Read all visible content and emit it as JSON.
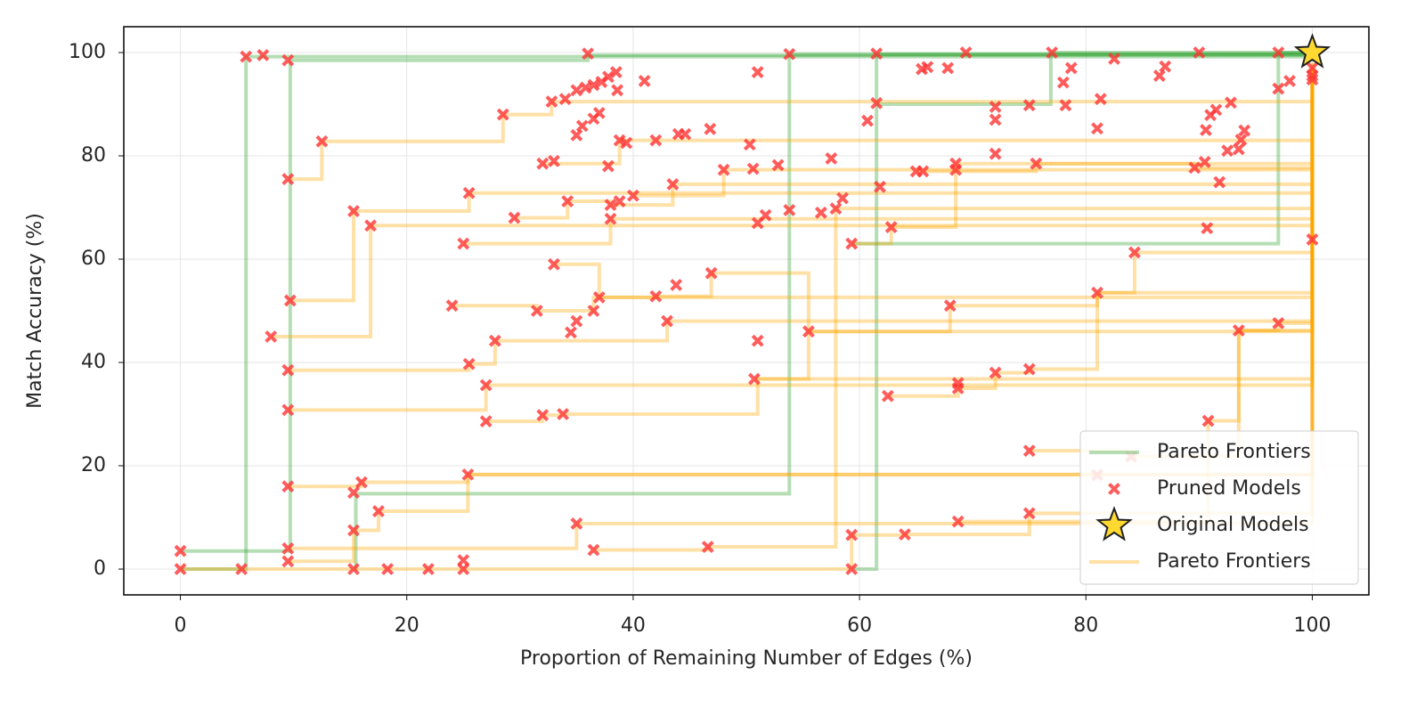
{
  "chart_data": {
    "type": "scatter",
    "xlabel": "Proportion of Remaining Number of Edges (%)",
    "ylabel": "Match Accuracy (%)",
    "xlim": [
      -5,
      105
    ],
    "ylim": [
      -5,
      105
    ],
    "xticks": [
      0,
      20,
      40,
      60,
      80,
      100
    ],
    "yticks": [
      0,
      20,
      40,
      60,
      80,
      100
    ],
    "grid": true,
    "legend": "lower right",
    "series": [
      {
        "name": "Pareto Frontiers",
        "color": "#2ca02c",
        "kind": "step",
        "lines": [
          {
            "x": [
              0,
              5.8,
              100
            ],
            "y": [
              0,
              99.2,
              100
            ]
          },
          {
            "x": [
              0,
              9.7,
              36,
              100
            ],
            "y": [
              3.5,
              98.5,
              99.5,
              100
            ]
          },
          {
            "x": [
              15.3,
              15.5,
              53.8,
              100
            ],
            "y": [
              0,
              14.6,
              99.7,
              100
            ]
          },
          {
            "x": [
              59.5,
              61.5,
              100
            ],
            "y": [
              0,
              99.7,
              100
            ]
          },
          {
            "x": [
              61.5,
              76.9,
              100
            ],
            "y": [
              90,
              100,
              100
            ]
          },
          {
            "x": [
              59.3,
              97,
              100
            ],
            "y": [
              63,
              100,
              100
            ]
          }
        ]
      },
      {
        "name": "Pruned Models",
        "color": "#ff3333",
        "marker": "x",
        "x": [
          0,
          0,
          5.4,
          5.8,
          7.3,
          9.5,
          9.5,
          9.7,
          9.5,
          9.5,
          9.5,
          9.5,
          9.5,
          8,
          12.5,
          15.3,
          16.8,
          15.3,
          16,
          15.3,
          17.5,
          15.3,
          18.3,
          21.9,
          25,
          25,
          25.4,
          24,
          25,
          25.5,
          25.5,
          27,
          27,
          27.8,
          28.5,
          29.5,
          31.5,
          32,
          32,
          33,
          32.8,
          33,
          33.8,
          34.2,
          34.5,
          34,
          35,
          35.8,
          36.5,
          37.2,
          37.8,
          38.5,
          38.6,
          35,
          35.5,
          36.5,
          37,
          35,
          36.5,
          37,
          36,
          36.5,
          35,
          37.8,
          38,
          38,
          38.8,
          38.8,
          39.4,
          40,
          41,
          42,
          42,
          43,
          43.5,
          43.8,
          44,
          44.6,
          46.6,
          46.8,
          46.9,
          48,
          50.3,
          50.6,
          50.7,
          51,
          51,
          51,
          51.7,
          52.8,
          53.8,
          53.8,
          55.5,
          56.6,
          57.5,
          57.9,
          58.5,
          59.3,
          59.3,
          59.3,
          60.7,
          61.5,
          61.5,
          61.8,
          62.5,
          62.8,
          64,
          65,
          65.5,
          66,
          67.8,
          68,
          68.5,
          68.5,
          68.7,
          68.7,
          68.7,
          69.4,
          72,
          72,
          72,
          72,
          75,
          75,
          75,
          75,
          75.6,
          77,
          78,
          78.2,
          78.7,
          81,
          81,
          81.3,
          82.5,
          84.3,
          86.5,
          87,
          89.6,
          90.5,
          90.6,
          90.7,
          90.8,
          91,
          91.5,
          91.8,
          92.8,
          92.5,
          93.5,
          93.5,
          93.7,
          94,
          97,
          97,
          97,
          98,
          100,
          100,
          100,
          100,
          90,
          81,
          84,
          65.6
        ],
        "y": [
          0,
          3.5,
          0,
          99.2,
          99.5,
          98.5,
          75.5,
          52,
          38.5,
          30.8,
          16,
          4,
          1.5,
          45,
          82.8,
          69.3,
          66.5,
          14.8,
          16.8,
          7.5,
          11.2,
          0,
          0,
          0,
          0,
          1.7,
          18.3,
          51,
          63,
          72.8,
          39.7,
          35.6,
          28.6,
          44.2,
          88,
          68,
          50,
          29.8,
          78.5,
          79,
          90.5,
          59,
          30,
          71.2,
          45.8,
          91,
          92.7,
          93.2,
          93.7,
          94.3,
          95.3,
          96.2,
          92.7,
          84,
          85.8,
          87.2,
          88.3,
          48,
          50,
          52.6,
          99.8,
          3.7,
          8.8,
          78,
          70.5,
          67.8,
          71.2,
          83,
          82.5,
          72.3,
          94.5,
          83,
          52.8,
          48,
          74.5,
          55,
          84.2,
          84.2,
          4.3,
          85.2,
          57.3,
          77.3,
          82.2,
          77.5,
          36.8,
          44.2,
          67,
          96.2,
          68.5,
          78.2,
          99.7,
          69.5,
          46,
          69,
          79.5,
          69.8,
          71.8,
          63,
          6.6,
          0,
          86.8,
          99.8,
          90.2,
          74,
          33.5,
          66.2,
          6.7,
          77,
          96.8,
          97.2,
          97,
          51,
          78.5,
          77.3,
          36,
          35,
          9.2,
          100,
          89.5,
          87,
          80.4,
          38,
          89.8,
          38.7,
          22.9,
          10.8,
          78.5,
          100,
          94.2,
          89.8,
          97,
          85.3,
          53.5,
          91,
          98.8,
          61.3,
          95.5,
          97.3,
          77.7,
          78.8,
          85,
          66,
          28.7,
          87.9,
          88.9,
          74.9,
          90.3,
          81,
          81.3,
          46.2,
          83.1,
          84.9,
          100,
          93,
          47.6,
          94.5,
          97,
          95.5,
          94.8,
          63.8,
          100,
          18.2,
          21.8,
          77
        ]
      },
      {
        "name": "Original Models",
        "color": "#ffd92f",
        "marker": "star",
        "x": [
          100
        ],
        "y": [
          100
        ]
      },
      {
        "name": "Pareto Frontiers",
        "color": "#ffa500",
        "kind": "step",
        "lines": [
          {
            "x": [
              0,
              59.3,
              64,
              75,
              100
            ],
            "y": [
              0,
              6.6,
              6.7,
              10.8,
              95.5
            ]
          },
          {
            "x": [
              9.5,
              15.3,
              17.5,
              25.4,
              100
            ],
            "y": [
              1.5,
              7.5,
              11.2,
              18.3,
              94.8
            ]
          },
          {
            "x": [
              9.5,
              35,
              100
            ],
            "y": [
              4,
              8.8,
              63.8
            ]
          },
          {
            "x": [
              9.5,
              16,
              25.4,
              100
            ],
            "y": [
              16,
              16.8,
              18.3,
              97
            ]
          },
          {
            "x": [
              9.5,
              27,
              100
            ],
            "y": [
              30.8,
              35.6,
              77.5
            ]
          },
          {
            "x": [
              9.5,
              25.5,
              27.8,
              43,
              100
            ],
            "y": [
              38.5,
              39.7,
              44.2,
              48,
              69.5
            ]
          },
          {
            "x": [
              8,
              16.8,
              100
            ],
            "y": [
              45,
              66.5,
              93
            ]
          },
          {
            "x": [
              9.7,
              15.3,
              25.5,
              100
            ],
            "y": [
              52,
              69.3,
              72.8,
              91
            ]
          },
          {
            "x": [
              9.5,
              12.5,
              28.5,
              32.8,
              100
            ],
            "y": [
              75.5,
              82.8,
              88,
              90.5,
              97
            ]
          },
          {
            "x": [
              24,
              31.5,
              36.5,
              100
            ],
            "y": [
              51,
              50,
              52.6,
              85
            ]
          },
          {
            "x": [
              25,
              38,
              100
            ],
            "y": [
              63,
              67.8,
              77.5
            ]
          },
          {
            "x": [
              27,
              32,
              33.8,
              51,
              100
            ],
            "y": [
              28.6,
              29.8,
              30,
              36.8,
              85.3
            ]
          },
          {
            "x": [
              33,
              37,
              42,
              46.9,
              55.5,
              100
            ],
            "y": [
              59,
              52.6,
              52.8,
              57.3,
              46,
              77.7
            ]
          },
          {
            "x": [
              36.5,
              46.6,
              57.9,
              100
            ],
            "y": [
              3.7,
              4.3,
              69.8,
              96.2
            ]
          },
          {
            "x": [
              62.5,
              68.7,
              72,
              75,
              81,
              100
            ],
            "y": [
              33.5,
              35,
              38,
              38.7,
              53.5,
              66
            ]
          },
          {
            "x": [
              75,
              84,
              93.5,
              97,
              100
            ],
            "y": [
              22.9,
              21.8,
              46.2,
              47.6,
              97.5
            ]
          },
          {
            "x": [
              68.7,
              90.8,
              93.5,
              100
            ],
            "y": [
              9.2,
              28.7,
              46.2,
              94
            ]
          },
          {
            "x": [
              50.7,
              55.5,
              68,
              81,
              84.3,
              100
            ],
            "y": [
              36.8,
              46,
              51,
              53.5,
              61.3,
              92
            ]
          },
          {
            "x": [
              29.5,
              34.2,
              38,
              43.5,
              100
            ],
            "y": [
              68,
              71.2,
              70.5,
              74.5,
              96
            ]
          },
          {
            "x": [
              32,
              38.8,
              100
            ],
            "y": [
              78.5,
              83,
              98
            ]
          },
          {
            "x": [
              40,
              48,
              100
            ],
            "y": [
              72.3,
              77.3,
              97.5
            ]
          },
          {
            "x": [
              59.3,
              62.8,
              68.5,
              100
            ],
            "y": [
              63,
              66.2,
              78.5,
              98
            ]
          },
          {
            "x": [
              65,
              75.6,
              89.6,
              100
            ],
            "y": [
              77,
              78.5,
              77.7,
              95
            ]
          }
        ]
      }
    ]
  }
}
